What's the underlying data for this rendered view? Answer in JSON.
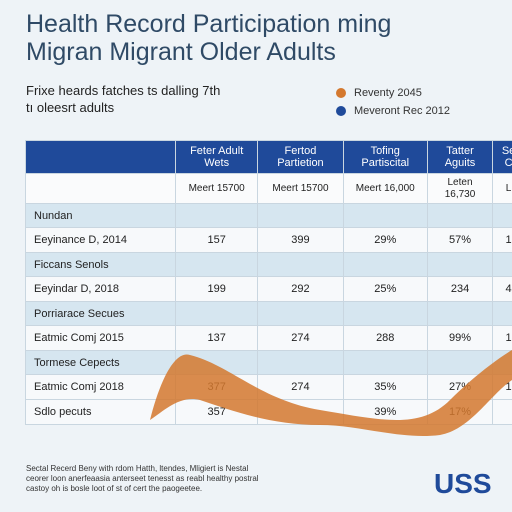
{
  "title": [
    "Health Record Participation ming",
    "Migran Migrant Older Adults"
  ],
  "subtitle": [
    "Frixe heards fatches ts dalling 7th",
    "tı oleesrt adults"
  ],
  "legend": [
    {
      "label": "Reventy 2045",
      "color": "#d4782e"
    },
    {
      "label": "Meveront Rec 2012",
      "color": "#1f4a9a"
    }
  ],
  "table": {
    "header": [
      "Feter Adult Wets",
      "Fertod Partietion",
      "Tofing Partiscital",
      "Tatter Aguits",
      "Se C"
    ],
    "subheader": [
      "Meert 15700",
      "Meert 15700",
      "Meert 16,000",
      "Leten 16,730",
      "L"
    ],
    "rows": [
      {
        "label": "Nundan"
      },
      {
        "label": "Eeyinance D, 2014",
        "cells": [
          "157",
          "399",
          "29%",
          "57%",
          "1"
        ]
      },
      {
        "label": "Ficcans Senols"
      },
      {
        "label": "Eeyindar D, 2018",
        "cells": [
          "199",
          "292",
          "25%",
          "234",
          "4"
        ]
      },
      {
        "label": "Porriarace Secues"
      },
      {
        "label": "Eatmic Comj 2015",
        "cells": [
          "137",
          "274",
          "288",
          "99%",
          "1"
        ]
      },
      {
        "label": "Tormese Cepects"
      },
      {
        "label": "Eatmic Comj 2018",
        "cells": [
          "377",
          "274",
          "35%",
          "27%",
          "1"
        ]
      },
      {
        "label": "Sdlo pecuts",
        "cells": [
          "357",
          "",
          "39%",
          "17%",
          ""
        ]
      }
    ]
  },
  "footnote": [
    "Sectal Recerd Beny with rdom Hatth, ltendes, Mligiert is Nestal",
    "ceorer loon anerfeaasia anterseet tenesst as reabl healthy postral",
    "castoy oh is bosle loot of st of cert the paogeetee."
  ],
  "logo": "USS"
}
